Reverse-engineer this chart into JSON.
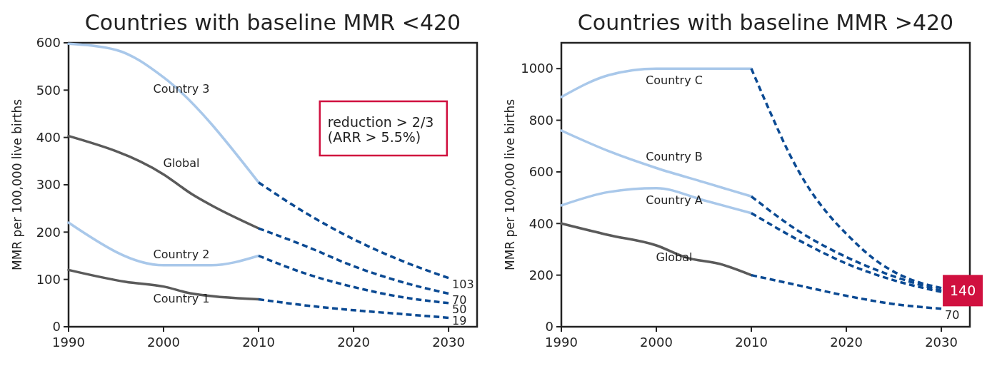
{
  "chart_data": [
    {
      "type": "line",
      "title": "Countries with baseline MMR <420",
      "ylabel": "MMR per 100,000 live births",
      "xlim": [
        1990,
        2033
      ],
      "ylim": [
        0,
        600
      ],
      "xticks": [
        1990,
        2000,
        2010,
        2020,
        2030
      ],
      "yticks": [
        0,
        100,
        200,
        300,
        400,
        500,
        600
      ],
      "annotations": [
        "reduction > 2/3\n(ARR > 5.5%)"
      ],
      "series": [
        {
          "name": "Country 3",
          "color": "#a9c8ea",
          "line_style": "solid",
          "x": [
            1990,
            1995,
            2000,
            2010
          ],
          "values": [
            598,
            585,
            527,
            305
          ]
        },
        {
          "name": "Global",
          "color": "#5a5a5a",
          "line_style": "solid",
          "x": [
            1990,
            2000,
            2003,
            2005,
            2010
          ],
          "values": [
            403,
            322,
            280,
            257,
            208
          ]
        },
        {
          "name": "Country 2",
          "color": "#a9c8ea",
          "line_style": "solid",
          "x": [
            1990,
            2000,
            2005,
            2010
          ],
          "values": [
            220,
            130,
            130,
            150
          ]
        },
        {
          "name": "Country 1",
          "color": "#5a5a5a",
          "line_style": "solid",
          "x": [
            1990,
            1996,
            2000,
            2003,
            2010
          ],
          "values": [
            120,
            95,
            85,
            70,
            58
          ]
        },
        {
          "color": "#0b4a93",
          "line_style": "dashed",
          "x": [
            2010,
            2015,
            2020,
            2025,
            2030
          ],
          "values": [
            305,
            240,
            185,
            140,
            103
          ],
          "value_labels": [
            null,
            null,
            null,
            null,
            "103"
          ]
        },
        {
          "color": "#0b4a93",
          "line_style": "dashed",
          "x": [
            2010,
            2015,
            2020,
            2025,
            2030
          ],
          "values": [
            208,
            170,
            128,
            95,
            70
          ],
          "value_labels": [
            null,
            null,
            null,
            null,
            "70"
          ]
        },
        {
          "color": "#0b4a93",
          "line_style": "dashed",
          "x": [
            2010,
            2015,
            2020,
            2025,
            2030
          ],
          "values": [
            150,
            112,
            84,
            63,
            50
          ],
          "value_labels": [
            null,
            null,
            null,
            null,
            "50"
          ]
        },
        {
          "color": "#0b4a93",
          "line_style": "dashed",
          "x": [
            2010,
            2015,
            2020,
            2025,
            2030
          ],
          "values": [
            58,
            45,
            35,
            27,
            19
          ],
          "value_labels": [
            null,
            null,
            null,
            null,
            "19"
          ]
        }
      ]
    },
    {
      "type": "line",
      "title": "Countries with baseline MMR >420",
      "ylabel": "MMR per 100,000 live births",
      "xlim": [
        1990,
        2033
      ],
      "ylim": [
        0,
        1100
      ],
      "xticks": [
        1990,
        2000,
        2010,
        2020,
        2030
      ],
      "yticks": [
        0,
        200,
        400,
        600,
        800,
        1000
      ],
      "annotations": [
        {
          "text": "140",
          "x": 2030,
          "y": 140
        }
      ],
      "series": [
        {
          "name": "Country C",
          "color": "#a9c8ea",
          "line_style": "solid",
          "x": [
            1990,
            1995,
            2000,
            2010
          ],
          "values": [
            890,
            975,
            1000,
            1000
          ]
        },
        {
          "name": "Country B",
          "color": "#a9c8ea",
          "line_style": "solid",
          "x": [
            1990,
            1995,
            2000,
            2005,
            2010
          ],
          "values": [
            760,
            680,
            615,
            560,
            505
          ]
        },
        {
          "name": "Country A",
          "color": "#a9c8ea",
          "line_style": "solid",
          "x": [
            1990,
            1995,
            2000,
            2005,
            2010
          ],
          "values": [
            470,
            522,
            537,
            490,
            440
          ]
        },
        {
          "name": "Global",
          "color": "#5a5a5a",
          "line_style": "solid",
          "x": [
            1990,
            1995,
            2000,
            2003,
            2007,
            2010
          ],
          "values": [
            400,
            355,
            315,
            270,
            240,
            200
          ]
        },
        {
          "color": "#0b4a93",
          "line_style": "dashed",
          "x": [
            2010,
            2012,
            2014,
            2016,
            2018,
            2020,
            2023,
            2026,
            2030
          ],
          "values": [
            1000,
            830,
            670,
            540,
            440,
            360,
            260,
            195,
            150
          ]
        },
        {
          "color": "#0b4a93",
          "line_style": "dashed",
          "x": [
            2010,
            2015,
            2020,
            2025,
            2030
          ],
          "values": [
            505,
            370,
            270,
            195,
            140
          ]
        },
        {
          "color": "#0b4a93",
          "line_style": "dashed",
          "x": [
            2010,
            2015,
            2020,
            2025,
            2030
          ],
          "values": [
            440,
            335,
            245,
            180,
            135
          ]
        },
        {
          "color": "#0b4a93",
          "line_style": "dashed",
          "x": [
            2010,
            2015,
            2020,
            2025,
            2030
          ],
          "values": [
            200,
            160,
            120,
            88,
            70
          ],
          "value_labels": [
            null,
            null,
            null,
            null,
            "70"
          ]
        }
      ]
    }
  ]
}
